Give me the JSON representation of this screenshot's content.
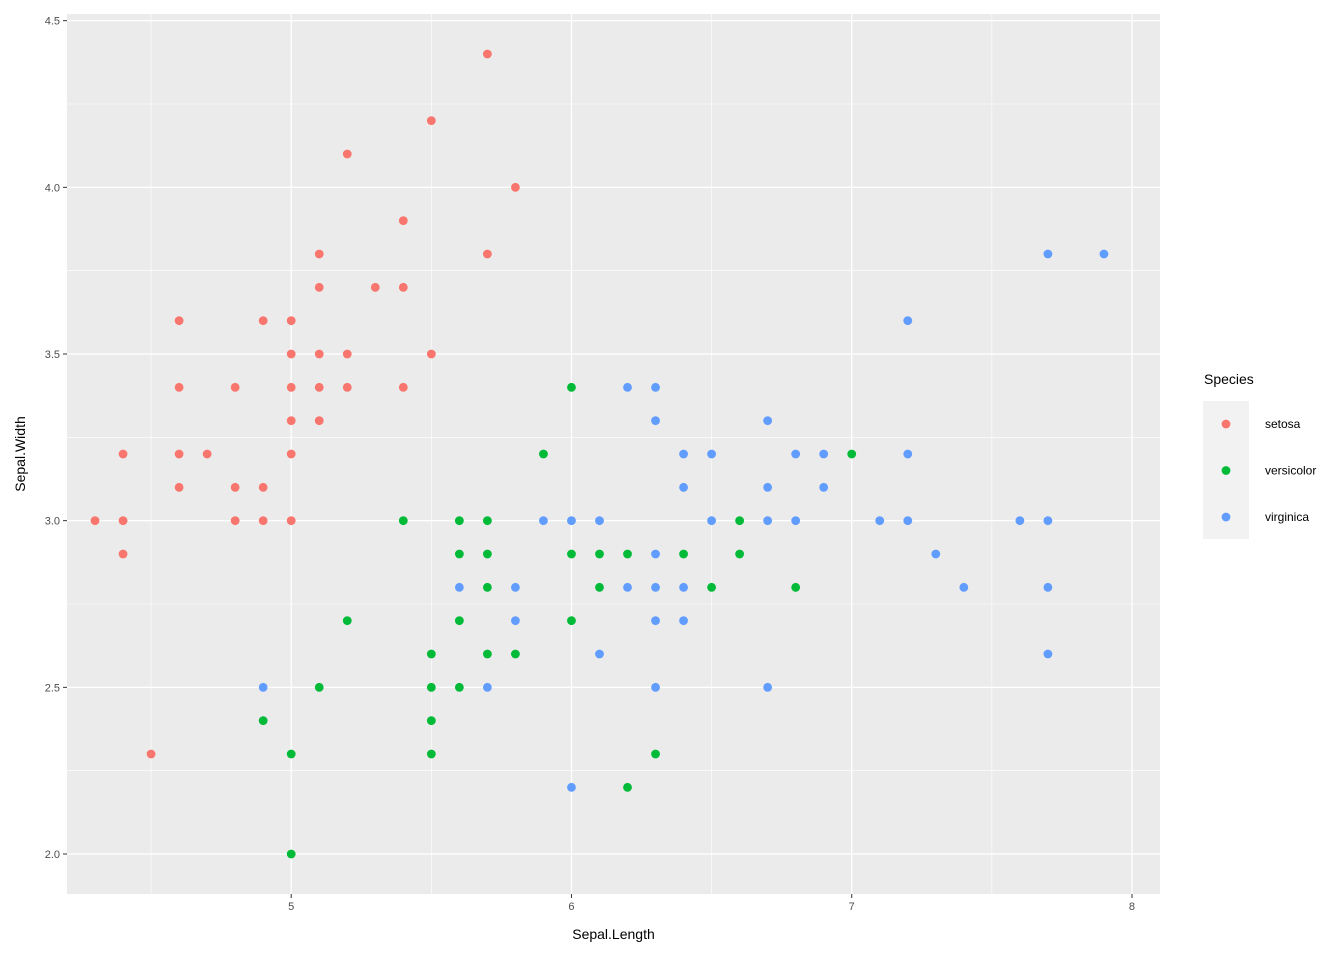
{
  "chart_data": {
    "type": "scatter",
    "title": "",
    "xlabel": "Sepal.Length",
    "ylabel": "Sepal.Width",
    "xlim": [
      4.2,
      8.1
    ],
    "ylim": [
      1.88,
      4.52
    ],
    "x_ticks": [
      5,
      6,
      7,
      8
    ],
    "y_ticks": [
      2.0,
      2.5,
      3.0,
      3.5,
      4.0,
      4.5
    ],
    "x_tick_labels": [
      "5",
      "6",
      "7",
      "8"
    ],
    "y_tick_labels": [
      "2.0",
      "2.5",
      "3.0",
      "3.5",
      "4.0",
      "4.5"
    ],
    "grid": true,
    "background": "#ebebeb",
    "legend": {
      "title": "Species",
      "placement": "right"
    },
    "series": [
      {
        "name": "setosa",
        "color": "#f8766d",
        "points": [
          [
            5.7,
            4.4
          ],
          [
            5.5,
            4.2
          ],
          [
            5.2,
            4.1
          ],
          [
            5.8,
            4.0
          ],
          [
            5.4,
            3.9
          ],
          [
            5.1,
            3.8
          ],
          [
            5.7,
            3.8
          ],
          [
            5.1,
            3.7
          ],
          [
            5.3,
            3.7
          ],
          [
            5.4,
            3.7
          ],
          [
            4.6,
            3.6
          ],
          [
            4.9,
            3.6
          ],
          [
            5.0,
            3.6
          ],
          [
            5.0,
            3.5
          ],
          [
            5.1,
            3.5
          ],
          [
            5.2,
            3.5
          ],
          [
            5.5,
            3.5
          ],
          [
            4.6,
            3.4
          ],
          [
            4.8,
            3.4
          ],
          [
            5.0,
            3.4
          ],
          [
            5.1,
            3.4
          ],
          [
            5.2,
            3.4
          ],
          [
            5.4,
            3.4
          ],
          [
            5.0,
            3.3
          ],
          [
            5.1,
            3.3
          ],
          [
            4.4,
            3.2
          ],
          [
            4.6,
            3.2
          ],
          [
            4.7,
            3.2
          ],
          [
            5.0,
            3.2
          ],
          [
            4.6,
            3.1
          ],
          [
            4.8,
            3.1
          ],
          [
            4.9,
            3.1
          ],
          [
            4.3,
            3.0
          ],
          [
            4.4,
            3.0
          ],
          [
            4.8,
            3.0
          ],
          [
            4.9,
            3.0
          ],
          [
            5.0,
            3.0
          ],
          [
            4.4,
            2.9
          ],
          [
            4.5,
            2.3
          ]
        ]
      },
      {
        "name": "versicolor",
        "color": "#00ba38",
        "points": [
          [
            6.0,
            3.4
          ],
          [
            5.9,
            3.2
          ],
          [
            7.0,
            3.2
          ],
          [
            5.4,
            3.0
          ],
          [
            5.6,
            3.0
          ],
          [
            5.7,
            3.0
          ],
          [
            6.6,
            3.0
          ],
          [
            5.6,
            2.9
          ],
          [
            5.7,
            2.9
          ],
          [
            6.0,
            2.9
          ],
          [
            6.1,
            2.9
          ],
          [
            6.2,
            2.9
          ],
          [
            6.4,
            2.9
          ],
          [
            6.6,
            2.9
          ],
          [
            5.7,
            2.8
          ],
          [
            6.1,
            2.8
          ],
          [
            6.5,
            2.8
          ],
          [
            6.8,
            2.8
          ],
          [
            5.2,
            2.7
          ],
          [
            5.6,
            2.7
          ],
          [
            6.0,
            2.7
          ],
          [
            5.5,
            2.6
          ],
          [
            5.7,
            2.6
          ],
          [
            5.8,
            2.6
          ],
          [
            5.1,
            2.5
          ],
          [
            5.5,
            2.5
          ],
          [
            5.6,
            2.5
          ],
          [
            4.9,
            2.4
          ],
          [
            5.5,
            2.4
          ],
          [
            5.0,
            2.3
          ],
          [
            5.5,
            2.3
          ],
          [
            6.3,
            2.3
          ],
          [
            6.2,
            2.2
          ],
          [
            5.0,
            2.0
          ]
        ]
      },
      {
        "name": "virginica",
        "color": "#619cff",
        "points": [
          [
            7.7,
            3.8
          ],
          [
            7.9,
            3.8
          ],
          [
            7.2,
            3.6
          ],
          [
            6.2,
            3.4
          ],
          [
            6.3,
            3.4
          ],
          [
            6.3,
            3.3
          ],
          [
            6.7,
            3.3
          ],
          [
            6.4,
            3.2
          ],
          [
            6.5,
            3.2
          ],
          [
            6.8,
            3.2
          ],
          [
            6.9,
            3.2
          ],
          [
            7.2,
            3.2
          ],
          [
            6.4,
            3.1
          ],
          [
            6.7,
            3.1
          ],
          [
            6.9,
            3.1
          ],
          [
            5.9,
            3.0
          ],
          [
            6.0,
            3.0
          ],
          [
            6.1,
            3.0
          ],
          [
            6.5,
            3.0
          ],
          [
            6.7,
            3.0
          ],
          [
            6.8,
            3.0
          ],
          [
            7.1,
            3.0
          ],
          [
            7.2,
            3.0
          ],
          [
            7.6,
            3.0
          ],
          [
            7.7,
            3.0
          ],
          [
            6.3,
            2.9
          ],
          [
            7.3,
            2.9
          ],
          [
            5.6,
            2.8
          ],
          [
            5.8,
            2.8
          ],
          [
            6.2,
            2.8
          ],
          [
            6.3,
            2.8
          ],
          [
            6.4,
            2.8
          ],
          [
            7.4,
            2.8
          ],
          [
            7.7,
            2.8
          ],
          [
            5.8,
            2.7
          ],
          [
            6.3,
            2.7
          ],
          [
            6.4,
            2.7
          ],
          [
            6.1,
            2.6
          ],
          [
            7.7,
            2.6
          ],
          [
            4.9,
            2.5
          ],
          [
            5.7,
            2.5
          ],
          [
            6.3,
            2.5
          ],
          [
            6.7,
            2.5
          ],
          [
            6.0,
            2.2
          ]
        ]
      }
    ]
  }
}
